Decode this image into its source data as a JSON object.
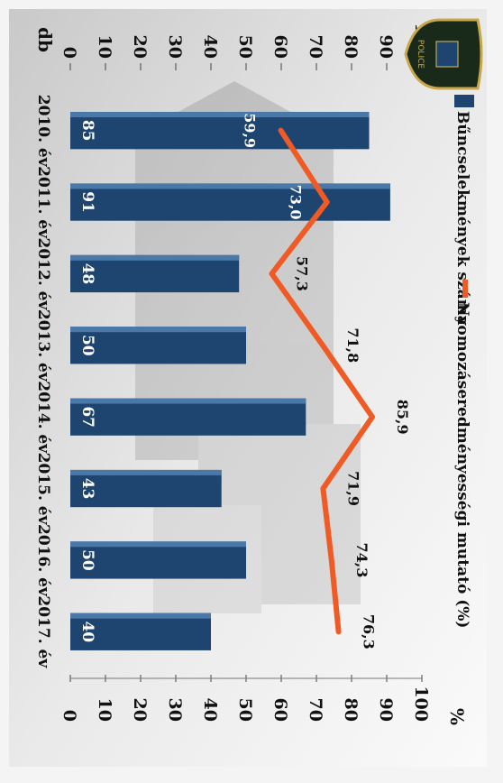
{
  "chart_data": {
    "type": "bar",
    "categories": [
      "2010. év",
      "2011. év",
      "2012. év",
      "2013. év",
      "2014. év",
      "2015. év",
      "2016. év",
      "2017. év"
    ],
    "series": [
      {
        "name": "Bűncselekmények száma",
        "kind": "bar",
        "axis": "left",
        "values": [
          85,
          91,
          48,
          50,
          67,
          43,
          50,
          40
        ],
        "labels": [
          "85",
          "91",
          "48",
          "50",
          "67",
          "43",
          "50",
          "40"
        ],
        "color": "#1e4570"
      },
      {
        "name": "Nyomozáseredményességi mutató (%)",
        "kind": "line",
        "axis": "right",
        "values": [
          59.9,
          73.0,
          57.3,
          71.8,
          85.9,
          71.9,
          74.3,
          76.3
        ],
        "labels": [
          "59,9",
          "73,0",
          "57,3",
          "71,8",
          "85,9",
          "71,9",
          "74,3",
          "76,3"
        ],
        "color": "#f05a24"
      }
    ],
    "y_left": {
      "label": "db",
      "range": [
        0,
        100
      ],
      "ticks": [
        "0",
        "10",
        "20",
        "30",
        "40",
        "50",
        "60",
        "70",
        "80",
        "90",
        "100"
      ]
    },
    "y_right": {
      "label": "%",
      "range": [
        0,
        100
      ],
      "ticks": [
        "0",
        "10",
        "20",
        "30",
        "40",
        "50",
        "60",
        "70",
        "80",
        "90",
        "100"
      ]
    },
    "legend_position": "top",
    "orientation": "rotated-90-clockwise"
  },
  "logo": {
    "text": "POLICE",
    "icon": "police-badge-icon"
  },
  "colors": {
    "bar": "#1e4570",
    "line": "#f05a24",
    "background": "#f4f4f4"
  }
}
